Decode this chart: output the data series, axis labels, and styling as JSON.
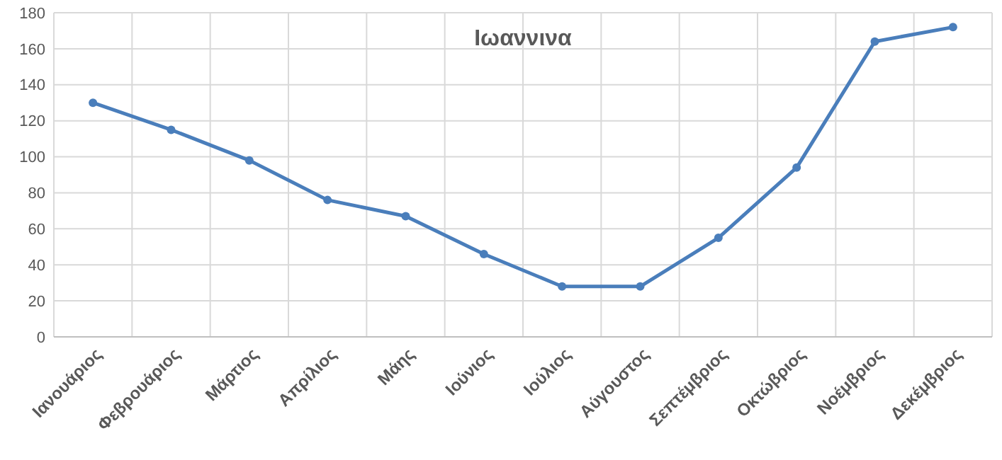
{
  "chart_data": {
    "type": "line",
    "title": "Ιωαννινα",
    "categories": [
      "Ιανουάριος",
      "Φεβρουάριος",
      "Μάρτιος",
      "Απρίλιος",
      "Μάης",
      "Ιούνιος",
      "Ιούλιος",
      "Αύγουστος",
      "Σεπτέμβριος",
      "Οκτώβριος",
      "Νοέμβριος",
      "Δεκέμβριος"
    ],
    "series": [
      {
        "color": "#4a7ebb",
        "values": [
          130,
          115,
          98,
          76,
          67,
          46,
          28,
          28,
          55,
          94,
          164,
          172
        ]
      }
    ],
    "ylim": [
      0,
      180
    ],
    "yticks": [
      0,
      20,
      40,
      60,
      80,
      100,
      120,
      140,
      160,
      180
    ],
    "grid": true,
    "marker": "circle",
    "line_style": "solid"
  }
}
